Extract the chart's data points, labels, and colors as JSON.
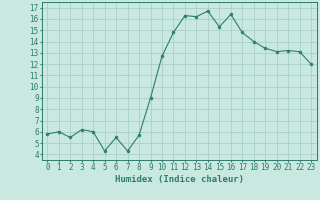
{
  "x": [
    0,
    1,
    2,
    3,
    4,
    5,
    6,
    7,
    8,
    9,
    10,
    11,
    12,
    13,
    14,
    15,
    16,
    17,
    18,
    19,
    20,
    21,
    22,
    23
  ],
  "y": [
    5.8,
    6.0,
    5.5,
    6.2,
    6.0,
    4.3,
    5.5,
    4.3,
    5.7,
    9.0,
    12.7,
    14.8,
    16.3,
    16.2,
    16.7,
    15.3,
    16.4,
    14.8,
    14.0,
    13.4,
    13.1,
    13.2,
    13.1,
    12.0
  ],
  "line_color": "#2e7d6e",
  "marker": "o",
  "marker_size": 2,
  "bg_color": "#c8e8e0",
  "grid_color": "#aacfc8",
  "xlabel": "Humidex (Indice chaleur)",
  "xlim": [
    -0.5,
    23.5
  ],
  "ylim": [
    3.5,
    17.5
  ],
  "yticks": [
    4,
    5,
    6,
    7,
    8,
    9,
    10,
    11,
    12,
    13,
    14,
    15,
    16,
    17
  ],
  "xticks": [
    0,
    1,
    2,
    3,
    4,
    5,
    6,
    7,
    8,
    9,
    10,
    11,
    12,
    13,
    14,
    15,
    16,
    17,
    18,
    19,
    20,
    21,
    22,
    23
  ],
  "tick_fontsize": 5.5,
  "label_fontsize": 6.5
}
